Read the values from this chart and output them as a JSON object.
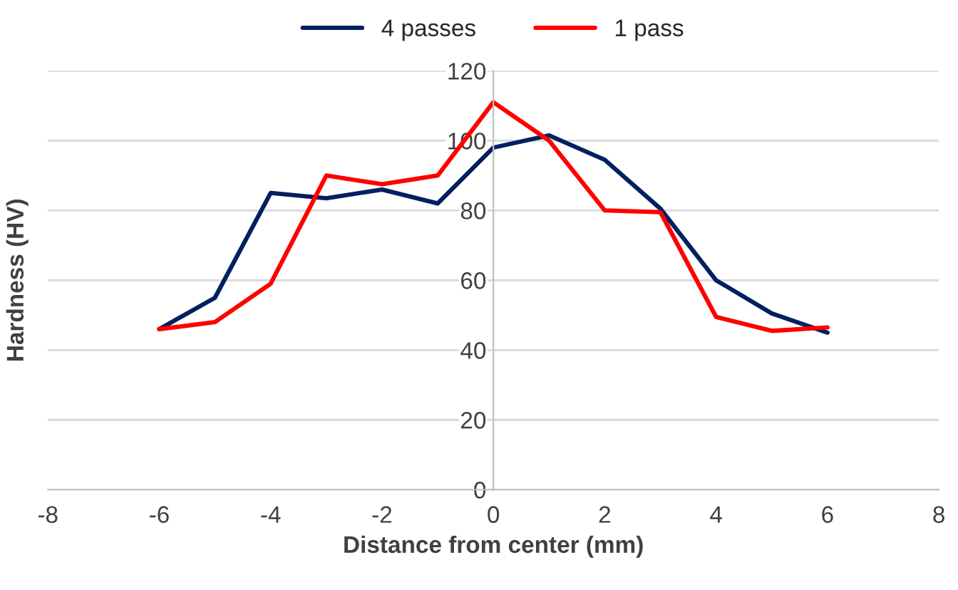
{
  "chart_data": {
    "type": "line",
    "xlabel": "Distance from center (mm)",
    "ylabel": "Hardness (HV)",
    "x": [
      -6,
      -5,
      -4,
      -3,
      -2,
      -1,
      0,
      1,
      2,
      3,
      4,
      5,
      6
    ],
    "series": [
      {
        "name": "4 passes",
        "color": "#002060",
        "values": [
          46,
          55,
          85,
          83.5,
          86,
          82,
          98,
          101.5,
          94.5,
          80.5,
          60,
          50.5,
          45
        ]
      },
      {
        "name": "1 pass",
        "color": "#ff0000",
        "values": [
          46,
          48,
          59,
          90,
          87.5,
          90,
          111,
          100,
          80,
          79.5,
          49.5,
          45.5,
          46.5
        ]
      }
    ],
    "xlim": [
      -8,
      8
    ],
    "xticks": [
      -8,
      -6,
      -4,
      -2,
      0,
      2,
      4,
      6,
      8
    ],
    "ylim": [
      0,
      120
    ],
    "yticks": [
      0,
      20,
      40,
      60,
      80,
      100,
      120
    ],
    "grid": "y",
    "legend": "top",
    "marker": "none",
    "line_style": "solid"
  }
}
